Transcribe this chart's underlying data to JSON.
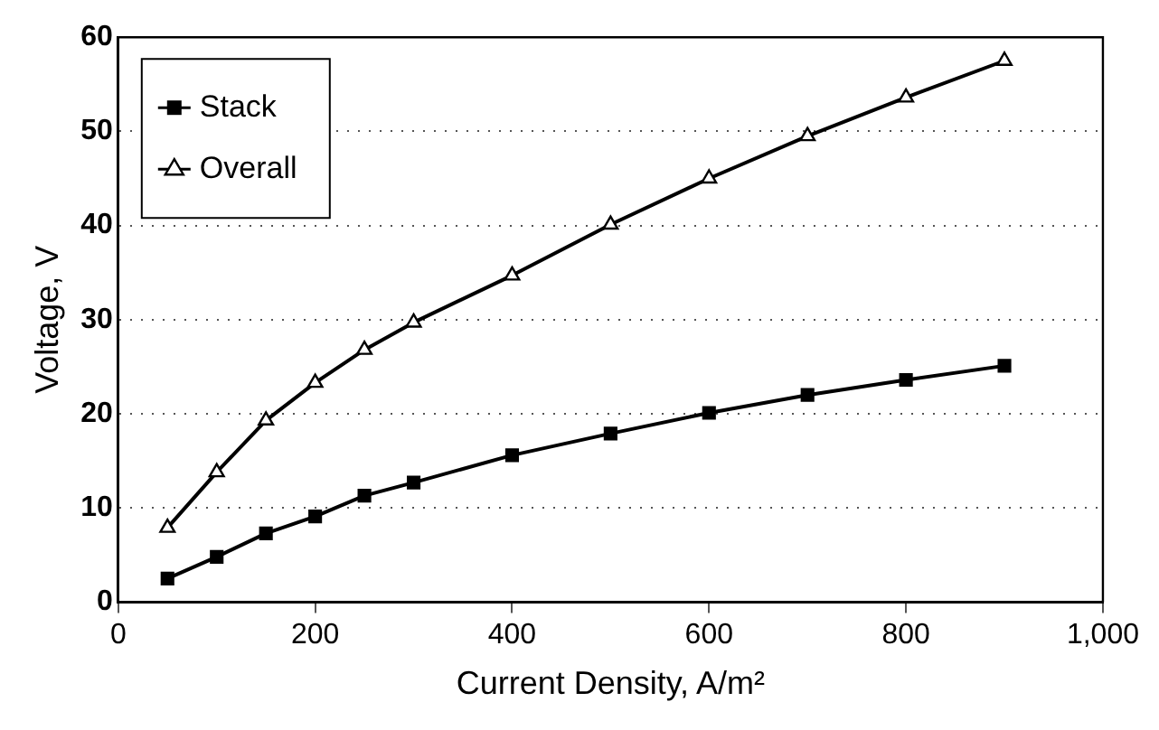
{
  "chart_data": {
    "type": "line",
    "xlabel": "Current Density, A/m²",
    "ylabel": "Voltage, V",
    "xlim": [
      0,
      1000
    ],
    "xticks": [
      0,
      200,
      400,
      600,
      800,
      {
        "value": 1000,
        "label": "1,000"
      }
    ],
    "ylim": [
      0,
      60
    ],
    "yticks": [
      0,
      10,
      20,
      30,
      40,
      50,
      60
    ],
    "grid": "y",
    "legend": "top left",
    "line_style": "solid",
    "x": [
      50,
      100,
      150,
      200,
      250,
      300,
      400,
      500,
      600,
      700,
      800,
      900
    ],
    "series": [
      {
        "name": "Stack",
        "color": "#000000",
        "marker": "square",
        "values": [
          2.5,
          4.8,
          7.3,
          9.1,
          11.3,
          12.7,
          15.6,
          17.9,
          20.1,
          22.0,
          23.6,
          25.1
        ]
      },
      {
        "name": "Overall",
        "color": "#000000",
        "marker": "triangle",
        "values": [
          7.9,
          13.8,
          19.3,
          23.3,
          26.8,
          29.7,
          34.7,
          40.1,
          45.0,
          49.5,
          53.6,
          57.5
        ]
      }
    ]
  }
}
